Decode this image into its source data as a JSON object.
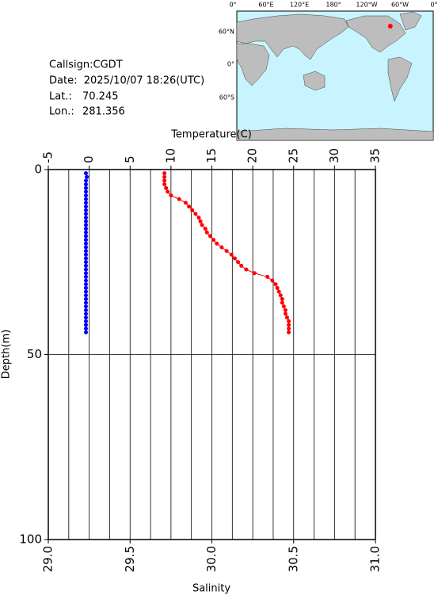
{
  "chart_data": {
    "type": "profile",
    "xlabel": "Temperature(C)",
    "x2label": "Salinity",
    "ylabel": "Depth(m)",
    "xlim": [
      -5,
      35
    ],
    "xticks": [
      -5,
      0,
      5,
      10,
      15,
      20,
      25,
      30,
      35
    ],
    "x2lim": [
      29,
      31
    ],
    "x2ticks": [
      {
        "value": 29,
        "label": "29.0"
      },
      {
        "value": 29.5,
        "label": "29.5"
      },
      {
        "value": 30,
        "label": "30.0"
      },
      {
        "value": 30.5,
        "label": "30.5"
      },
      {
        "value": 31,
        "label": "31.0"
      }
    ],
    "ylim": [
      0,
      100
    ],
    "yticks": [
      0,
      50,
      100
    ],
    "y_inverted": true,
    "grid": true,
    "x_minor_grid": [
      -2.5,
      2.5,
      7.5,
      12.5,
      17.5,
      22.5,
      27.5,
      32.5
    ],
    "depth": [
      1,
      2,
      3,
      4,
      5,
      6,
      7,
      8,
      9,
      10,
      11,
      12,
      13,
      14,
      15,
      16,
      17,
      18,
      19,
      20,
      21,
      22,
      23,
      24,
      25,
      26,
      27,
      28,
      29,
      30,
      31,
      32,
      33,
      34,
      35,
      36,
      37,
      38,
      39,
      40,
      41,
      42,
      43,
      44
    ],
    "series": [
      {
        "color": "#0000ff",
        "axis": "x",
        "values": [
          -0.4,
          -0.3,
          -0.4,
          -0.4,
          -0.4,
          -0.4,
          -0.4,
          -0.4,
          -0.4,
          -0.4,
          -0.4,
          -0.4,
          -0.4,
          -0.4,
          -0.4,
          -0.4,
          -0.4,
          -0.4,
          -0.4,
          -0.4,
          -0.4,
          -0.4,
          -0.4,
          -0.4,
          -0.4,
          -0.4,
          -0.4,
          -0.4,
          -0.4,
          -0.4,
          -0.4,
          -0.4,
          -0.4,
          -0.4,
          -0.4,
          -0.4,
          -0.4,
          -0.4,
          -0.4,
          -0.4,
          -0.4,
          -0.4,
          -0.4,
          -0.4
        ]
      },
      {
        "color": "#ff0000",
        "axis": "x2",
        "values": [
          29.71,
          29.71,
          29.71,
          29.71,
          29.72,
          29.73,
          29.75,
          29.8,
          29.84,
          29.86,
          29.88,
          29.9,
          29.92,
          29.93,
          29.94,
          29.96,
          29.97,
          29.99,
          30.01,
          30.03,
          30.06,
          30.09,
          30.12,
          30.14,
          30.16,
          30.18,
          30.21,
          30.26,
          30.34,
          30.37,
          30.39,
          30.4,
          30.41,
          30.42,
          30.43,
          30.43,
          30.44,
          30.45,
          30.45,
          30.46,
          30.47,
          30.47,
          30.47,
          30.47
        ]
      }
    ]
  },
  "info": {
    "callsign": "Callsign:CGDT",
    "date": "Date:  2025/10/07 18:26(UTC)",
    "lat_label": "Lat.:",
    "lat": 70.245,
    "lon_label": "Lon.:",
    "lon": 281.356
  },
  "map": {
    "lon_labels": [
      "0°",
      "60°E",
      "120°E",
      "180°",
      "120°W",
      "60°W",
      "0°"
    ],
    "lat_labels": [
      "60°N",
      "0°",
      "60°S"
    ]
  }
}
